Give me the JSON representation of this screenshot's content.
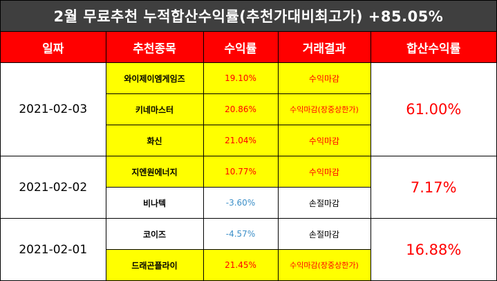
{
  "title": "2월 무료추천 누적합산수익률(추천가대비최고가) +85.05%",
  "headers": [
    "일짜",
    "추천종목",
    "수익률",
    "거래결과",
    "합산수익률"
  ],
  "groups": [
    {
      "date": "2021-02-03",
      "cumulative": "61.00%",
      "rows": [
        {
          "stock": "와이제이엠게임즈",
          "return": "19.10%",
          "result": "수익마감"
        },
        {
          "stock": "키네마스터",
          "return": "20.86%",
          "result": "수익마감(장중상한가)"
        },
        {
          "stock": "화신",
          "return": "21.04%",
          "result": "수익마감"
        }
      ]
    },
    {
      "date": "2021-02-02",
      "cumulative": "7.17%",
      "rows": [
        {
          "stock": "지엔원에너지",
          "return": "10.77%",
          "result": "수익마감"
        },
        {
          "stock": "비나텍",
          "return": "-3.60%",
          "result": "손절마감"
        }
      ]
    },
    {
      "date": "2021-02-01",
      "cumulative": "16.88%",
      "rows": [
        {
          "stock": "코이즈",
          "return": "-4.57%",
          "result": "손절마감"
        },
        {
          "stock": "드래곤플라이",
          "return": "21.45%",
          "result": "수익마감(장중상한가)"
        }
      ]
    }
  ],
  "colors": {
    "header_bg": "#ff0000",
    "title_bg": "#3f3f3f",
    "highlight": "#ffff00",
    "positive": "#ff0000",
    "negative": "#3c8fc8"
  }
}
